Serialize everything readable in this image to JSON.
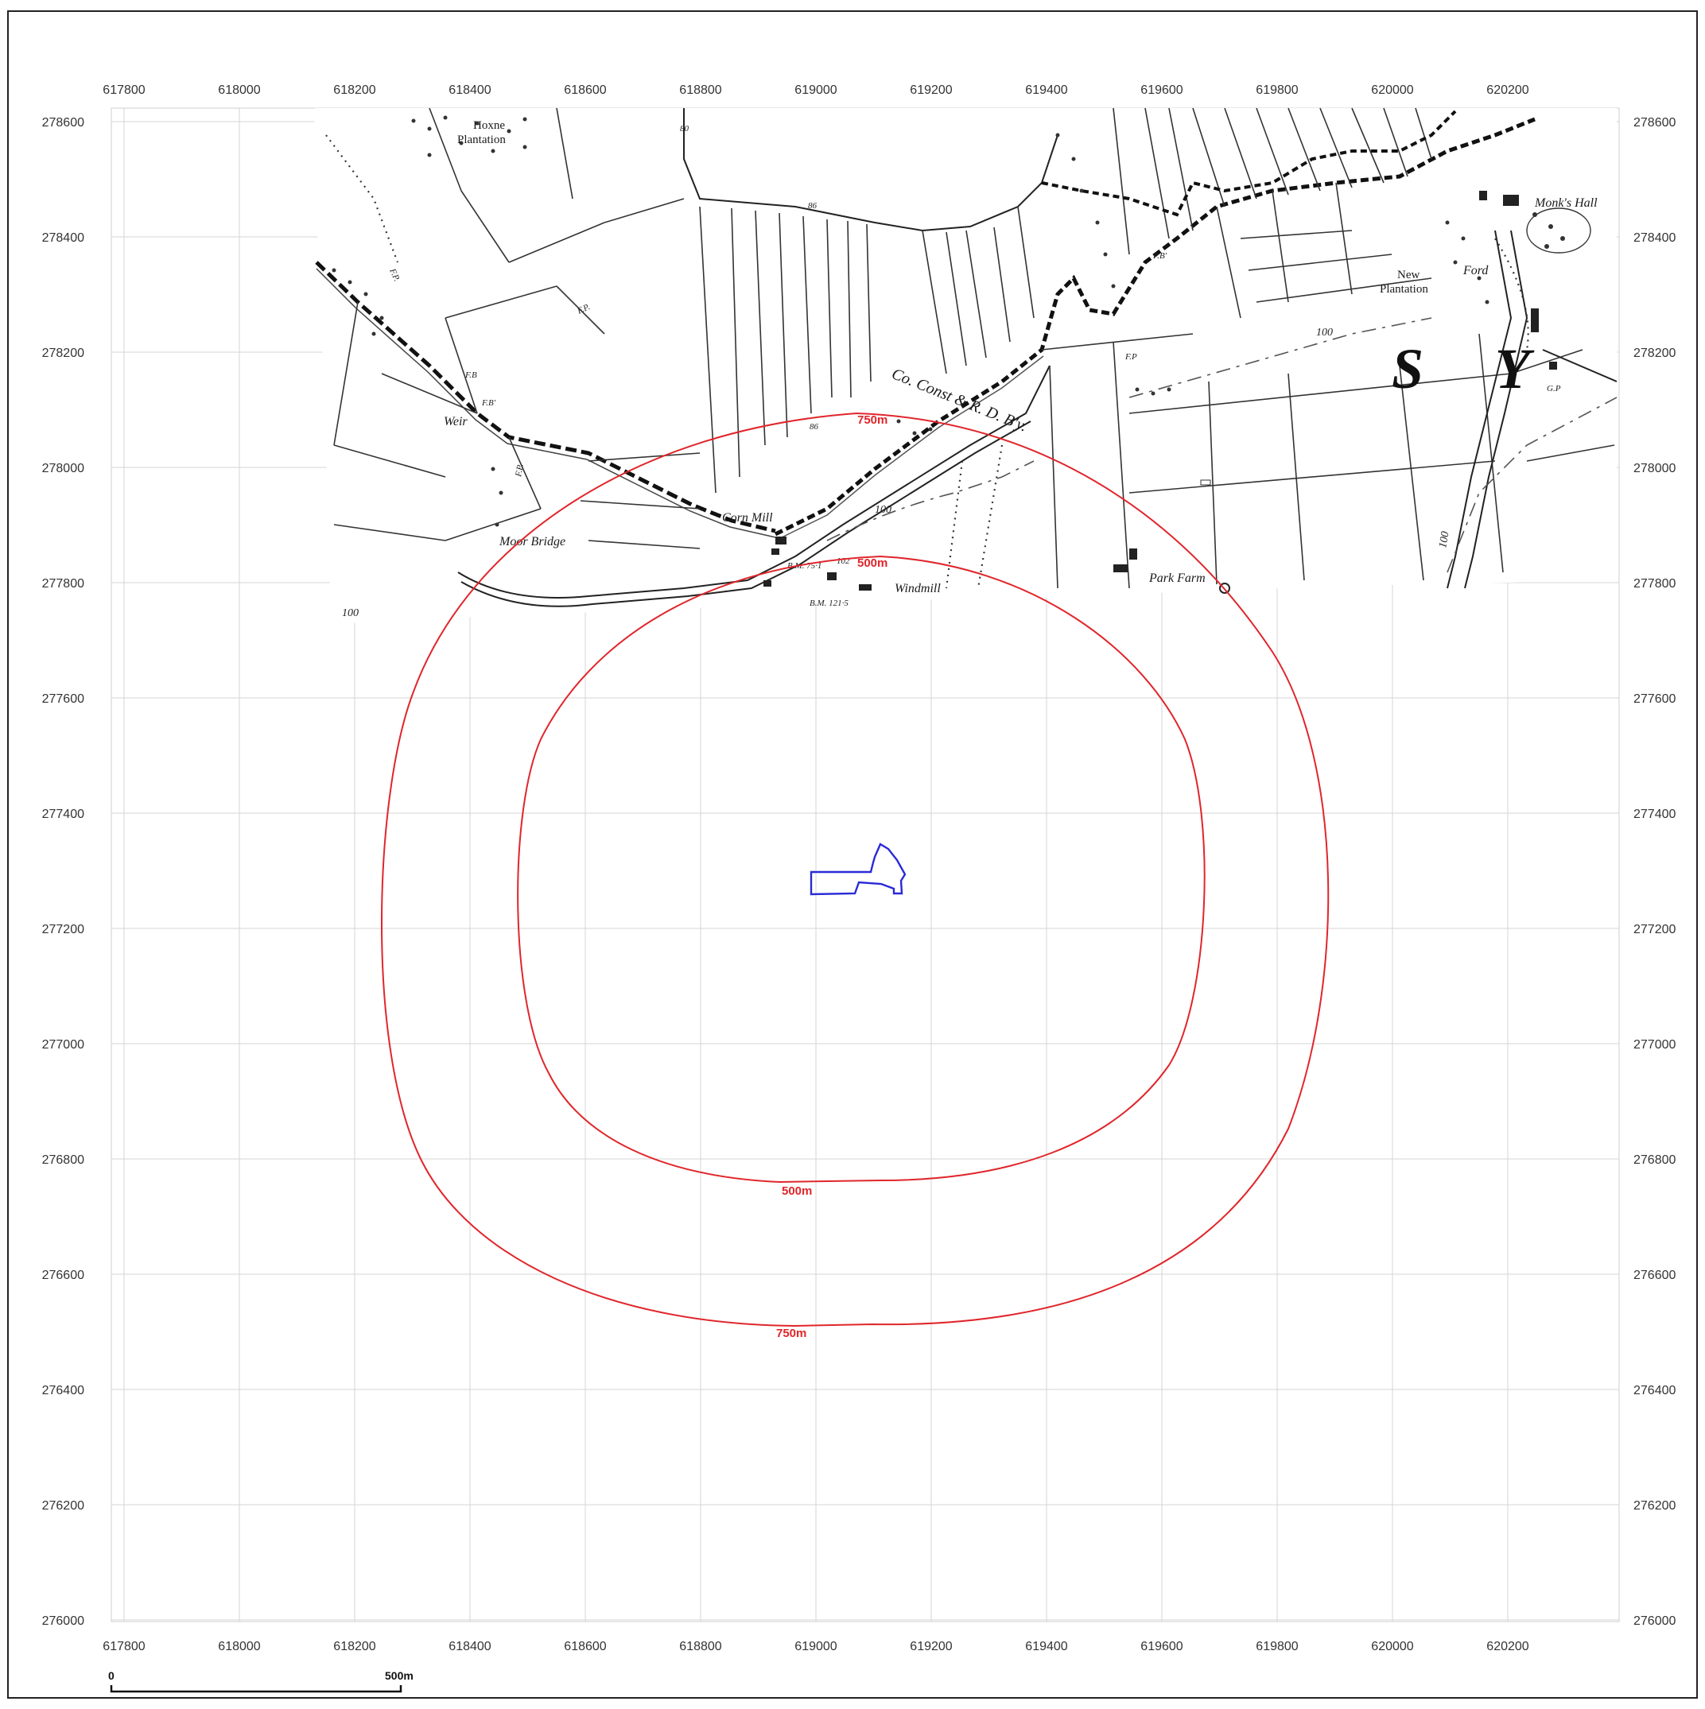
{
  "map": {
    "x_ticks": [
      "617800",
      "618000",
      "618200",
      "618400",
      "618600",
      "618800",
      "619000",
      "619200",
      "619400",
      "619600",
      "619800",
      "620000",
      "620200"
    ],
    "y_ticks": [
      "278600",
      "278400",
      "278200",
      "278000",
      "277800",
      "277600",
      "277400",
      "277200",
      "277000",
      "276800",
      "276600",
      "276400",
      "276200",
      "276000"
    ],
    "x_range": [
      617710,
      620510
    ],
    "y_range": [
      275990,
      278620
    ],
    "buffers": [
      {
        "label": "500m",
        "color": "#e0262b"
      },
      {
        "label": "750m",
        "color": "#e0262b"
      }
    ],
    "site_outline_color": "#2a2ad6",
    "place_names": {
      "hoxne": "Hoxne",
      "plantation": "Plantation",
      "moor_bridge": "Moor Bridge",
      "weir": "Weir",
      "corn_mill": "Corn Mill",
      "windmill": "Windmill",
      "park_farm": "Park Farm",
      "railway": "Co. Const & R. D. B'y.",
      "new": "New",
      "new_plantation": "Plantation",
      "ford": "Ford",
      "monks_hall": "Monk's Hall",
      "gp": "G.P",
      "letter_s": "S",
      "letter_y": "Y",
      "fb1": "F.B",
      "fb2": "F.B'",
      "fb3": "F.B'",
      "fp1": "F.P.",
      "fp2": "F.P.",
      "fp3": "F.P",
      "fp4": "F.P.",
      "bm1": "B.M. 75·1",
      "bm2": "B.M. 121·5",
      "spot_102": "102",
      "spot_86a": "86",
      "spot_86b": "86",
      "spot_80": "80",
      "contour_100a": "100",
      "contour_100b": "100",
      "contour_100c": "100",
      "contour_100d": "100"
    },
    "scale_bar": {
      "start": "0",
      "end": "500m"
    }
  }
}
